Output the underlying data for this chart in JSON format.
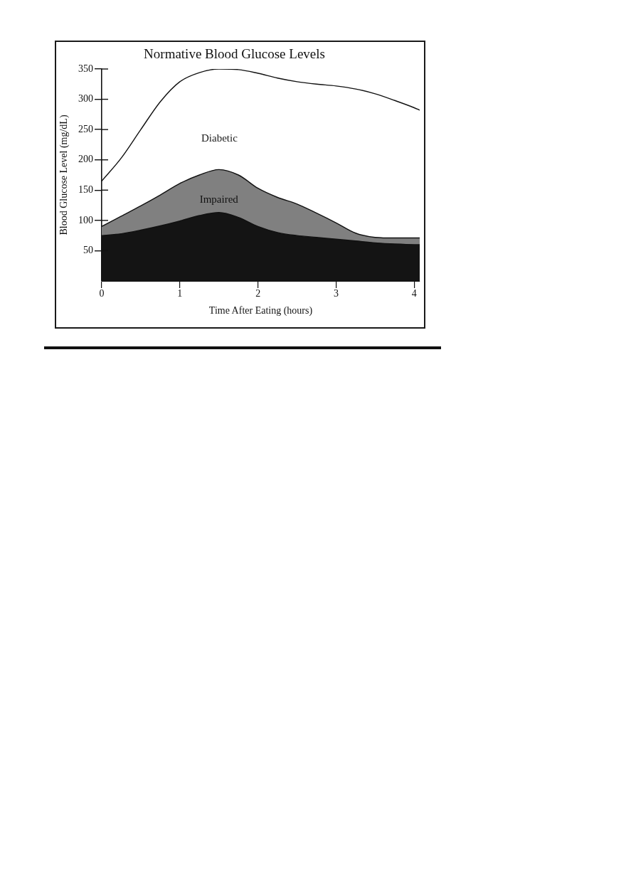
{
  "chart_data": {
    "type": "area",
    "title": "Normative Blood Glucose Levels",
    "xlabel": "Time After Eating (hours)",
    "ylabel": "Blood Glucose Level (mg/dL)",
    "x": [
      0,
      0.25,
      0.5,
      0.75,
      1,
      1.25,
      1.5,
      1.75,
      2,
      2.25,
      2.5,
      2.75,
      3,
      3.25,
      3.5,
      3.75,
      4,
      4.07
    ],
    "series": [
      {
        "color": "#141414",
        "values": [
          75,
          78,
          84,
          91,
          99,
          108,
          113,
          105,
          90,
          80,
          75,
          72,
          69,
          66,
          63,
          61,
          60,
          60
        ]
      },
      {
        "name": "Impaired",
        "color": "#808080",
        "values": [
          90,
          107,
          124,
          142,
          161,
          175,
          184,
          175,
          153,
          138,
          127,
          112,
          96,
          79,
          72,
          71,
          71,
          71
        ]
      },
      {
        "type": "line",
        "color": "#111111",
        "values": [
          165,
          203,
          250,
          296,
          329,
          344,
          350,
          349,
          343,
          335,
          329,
          325,
          322,
          317,
          309,
          298,
          286,
          282
        ]
      }
    ],
    "annotations": [
      "Diabetic"
    ],
    "xlim": [
      0,
      4.07
    ],
    "ylim": [
      0,
      350
    ],
    "xticks": [
      0,
      1,
      2,
      3,
      4
    ],
    "yticks": [
      50,
      100,
      150,
      200,
      250,
      300,
      350
    ],
    "marker": "none"
  }
}
